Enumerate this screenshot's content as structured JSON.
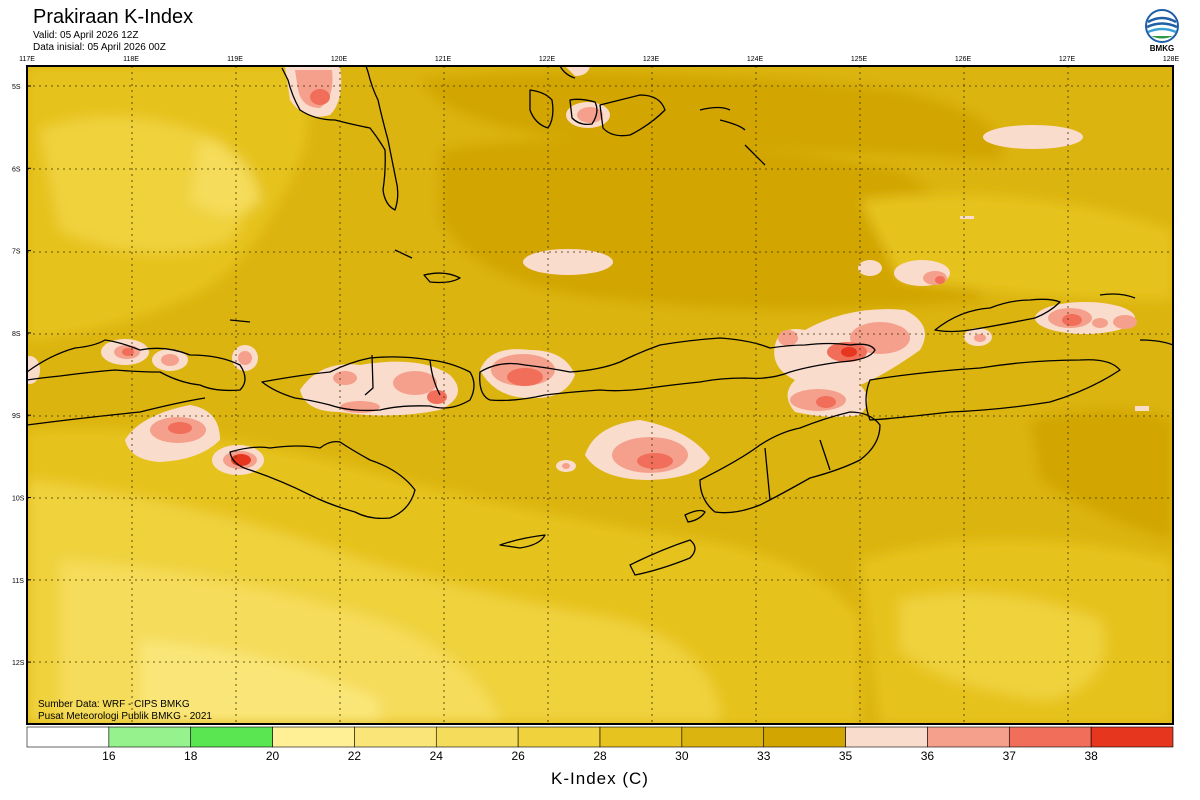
{
  "header": {
    "title": "Prakiraan K-Index",
    "valid": "Valid: 05 April 2026 12Z",
    "init": "Data inisial: 05 April 2026 00Z",
    "logo_text": "BMKG"
  },
  "map": {
    "lon_labels": [
      "117E",
      "118E",
      "119E",
      "120E",
      "121E",
      "122E",
      "123E",
      "124E",
      "125E",
      "126E",
      "127E",
      "128E"
    ],
    "lat_labels": [
      "5S",
      "6S",
      "7S",
      "8S",
      "9S",
      "10S",
      "11S",
      "12S"
    ],
    "credit_source": "Sumber Data: WRF - CIPS BMKG",
    "credit_org": "Pusat Meteorologi Publik BMKG - 2021"
  },
  "colorbar": {
    "colors": [
      "#ffffff",
      "#96f28c",
      "#5ae650",
      "#fff096",
      "#fae678",
      "#f5dc5a",
      "#f0d23c",
      "#e6c31e",
      "#dcb40f",
      "#d2a500",
      "#fadccd",
      "#f5a08c",
      "#f06e5a",
      "#e6371e"
    ],
    "tick_labels": [
      "16",
      "18",
      "20",
      "22",
      "24",
      "26",
      "28",
      "30",
      "33",
      "35",
      "36",
      "37",
      "38"
    ],
    "title": "K-Index (C)"
  },
  "colors": {
    "sea_base": "#dcb40f",
    "coastline": "#000000"
  }
}
